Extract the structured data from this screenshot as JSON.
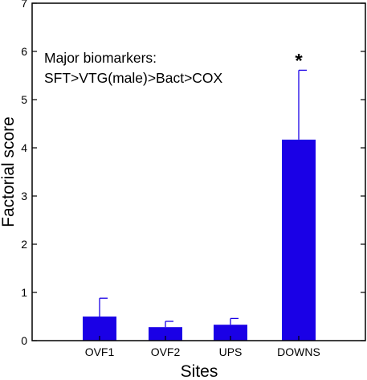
{
  "chart_data": {
    "type": "bar",
    "categories": [
      "OVF1",
      "OVF2",
      "UPS",
      "DOWNS"
    ],
    "values": [
      0.5,
      0.28,
      0.33,
      4.17
    ],
    "error_upper": [
      0.88,
      0.4,
      0.46,
      5.61
    ],
    "xlabel": "Sites",
    "ylabel": "Factorial score",
    "ylim": [
      0,
      7
    ],
    "yticks": [
      0,
      1,
      2,
      3,
      4,
      5,
      6,
      7
    ],
    "grid": false,
    "bar_color": "#1a00e6",
    "annotation_lines": [
      "Major biomarkers:",
      "SFT>VTG(male)>Bact>COX"
    ],
    "significance_marker": "*",
    "significance_category": "DOWNS"
  }
}
